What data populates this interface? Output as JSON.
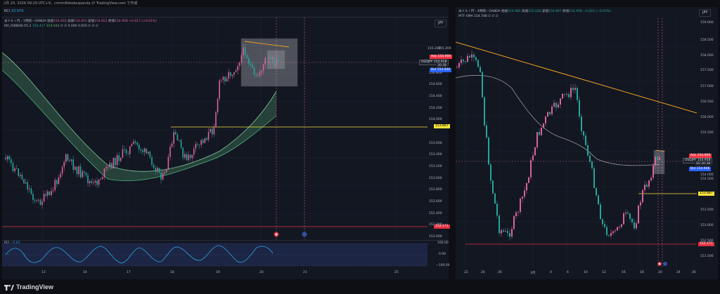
{
  "header": {
    "timestamp": "2月 20, 2026 09:29 UTC+9、crimin8doskospanda が TradingView.com で作成"
  },
  "left_chart": {
    "rci_header_label": "RCI",
    "rci_header_value": "20.979",
    "title": "米ドル / 円・1時間・OANDA",
    "quote": {
      "bid_label": "始値",
      "bid": "154.916",
      "high_label": "高値",
      "high": "154.993",
      "low_label": "安値",
      "low": "154.851",
      "close_label": "終値",
      "close": "154.958",
      "change": "+0.017 (+0.01%)"
    },
    "indicator_name": "MA_RIBBON R5.2",
    "indicator_values": [
      "154.447",
      "154.044",
      "∅",
      "∅",
      "0.000",
      "0.000",
      "∅",
      "∅",
      "∅"
    ],
    "currency": "JPY",
    "price_axis": [
      "155.200",
      "155.000",
      "154.800",
      "154.600",
      "154.400",
      "154.200",
      "154.000",
      "153.800",
      "153.600",
      "153.400",
      "153.200",
      "153.000",
      "152.800",
      "152.600",
      "152.400",
      "152.200",
      "152.000"
    ],
    "ask_badge": {
      "label": "Ask",
      "value": "154.969"
    },
    "pair_badge": {
      "label": "USDJPY",
      "value": "154.958",
      "time": "30:38"
    },
    "bid_badge": {
      "label": "Bid",
      "value": "154.946"
    },
    "yellow_level": "153.867",
    "red_level": "152.171",
    "time_axis": [
      "13",
      "14",
      "17",
      "18",
      "19",
      "20",
      "21",
      "25"
    ],
    "rci_pane": {
      "label": "RCI",
      "value": "−5.81",
      "axis": [
        "100.00",
        "0.00",
        "−100.00"
      ]
    }
  },
  "right_chart": {
    "title": "米ドル / 円・4時間・OANDA",
    "quote": {
      "bid_label": "始値",
      "bid": "154.985",
      "high_label": "高値",
      "high": "155.028",
      "low_label": "安値",
      "low": "154.897",
      "close_label": "終値",
      "close": "154.958",
      "change": "−0.043 (−0.03%)"
    },
    "indicator_name": "MTF-SMA",
    "indicator_values": [
      "154.748",
      "∅",
      "∅",
      "∅"
    ],
    "currency": "JPY",
    "price_axis": [
      "159.000",
      "158.500",
      "158.000",
      "157.500",
      "157.000",
      "156.500",
      "156.000",
      "155.500",
      "155.000",
      "154.500",
      "154.000",
      "153.500",
      "153.000",
      "152.500",
      "152.000",
      "151.500"
    ],
    "ask_badge": {
      "label": "Ask",
      "value": "154.969"
    },
    "pair_badge": {
      "label": "USDJPY",
      "value": "154.958",
      "time": "02:30:38"
    },
    "bid_badge": {
      "label": "Bid",
      "value": "154.946"
    },
    "yellow_level": "153.887",
    "red_level": "152.171",
    "time_axis": [
      "22",
      "24",
      "26",
      "3月",
      "4",
      "6",
      "10",
      "12",
      "16",
      "18",
      "20",
      "24",
      "26"
    ]
  },
  "footer": {
    "brand": "TradingView"
  },
  "colors": {
    "up": "#d8649c",
    "down": "#26a69a",
    "trend": "#f0a020",
    "yellow": "#f7e33b",
    "red": "#e03040",
    "ask": "#f23645",
    "bid": "#2962ff"
  }
}
